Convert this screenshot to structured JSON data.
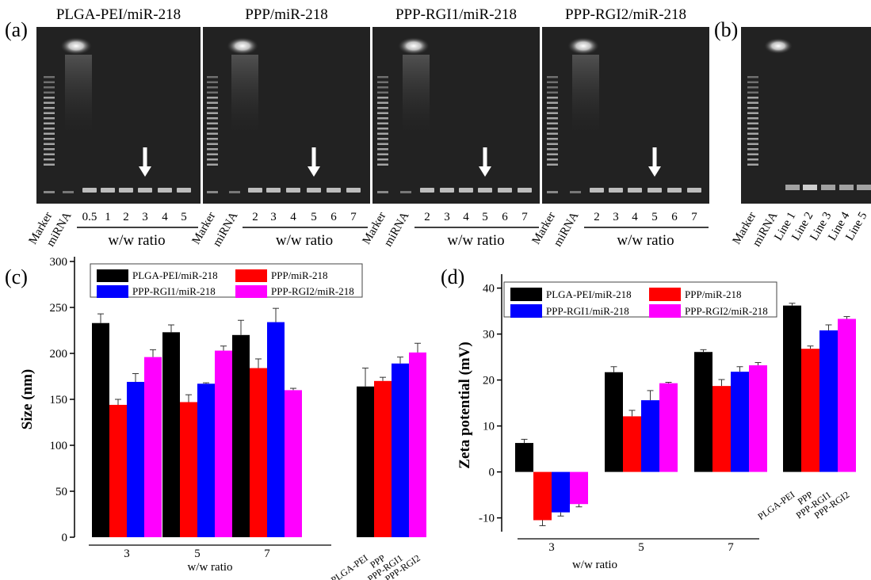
{
  "gels": {
    "panel_a_label": "(a)",
    "panel_b_label": "(b)",
    "xlabel": "w/w ratio",
    "lane_marker": "Marker",
    "lane_mirna": "miRNA",
    "panels": [
      {
        "title": "PLGA-PEI/miR-218",
        "ratios": [
          "0.5",
          "1",
          "2",
          "3",
          "4",
          "5"
        ],
        "arrow_at": "3"
      },
      {
        "title": "PPP/miR-218",
        "ratios": [
          "2",
          "3",
          "4",
          "5",
          "6",
          "7"
        ],
        "arrow_at": "5"
      },
      {
        "title": "PPP-RGI1/miR-218",
        "ratios": [
          "2",
          "3",
          "4",
          "5",
          "6",
          "7"
        ],
        "arrow_at": "5"
      },
      {
        "title": "PPP-RGI2/miR-218",
        "ratios": [
          "2",
          "3",
          "4",
          "5",
          "6",
          "7"
        ],
        "arrow_at": "5"
      }
    ],
    "panel_b_lanes": [
      "Marker",
      "miRNA",
      "Line 1",
      "Line 2",
      "Line 3",
      "Line 4",
      "Line 5"
    ]
  },
  "chart_data": [
    {
      "panel": "(c)",
      "type": "bar",
      "title": "",
      "xlabel": "w/w ratio",
      "ylabel": "Size (nm)",
      "ylim": [
        0,
        300
      ],
      "yticks": [
        0,
        50,
        100,
        150,
        200,
        250,
        300
      ],
      "categories": [
        "3",
        "5",
        "7"
      ],
      "extra_categories": [
        "PLGA-PEI",
        "PPP",
        "PPP-RGI1",
        "PPP-RGI2"
      ],
      "extra_values": [
        164,
        170,
        189,
        201
      ],
      "extra_errors": [
        20,
        4,
        7,
        10
      ],
      "legend_position": "top-left",
      "series": [
        {
          "name": "PLGA-PEI/miR-218",
          "color": "#000000",
          "values": [
            233,
            223,
            220
          ],
          "errors": [
            10,
            8,
            16
          ]
        },
        {
          "name": "PPP/miR-218",
          "color": "#ff0000",
          "values": [
            144,
            147,
            184
          ],
          "errors": [
            6,
            8,
            10
          ]
        },
        {
          "name": "PPP-RGI1/miR-218",
          "color": "#0000ff",
          "values": [
            169,
            167,
            234
          ],
          "errors": [
            9,
            1,
            15
          ]
        },
        {
          "name": "PPP-RGI2/miR-218",
          "color": "#ff00ff",
          "values": [
            196,
            203,
            160
          ],
          "errors": [
            8,
            5,
            2
          ]
        }
      ]
    },
    {
      "panel": "(d)",
      "type": "bar",
      "title": "",
      "xlabel": "w/w ratio",
      "ylabel": "Zeta potential (mV)",
      "ylim": [
        -13,
        42
      ],
      "yticks": [
        -10,
        0,
        10,
        20,
        30,
        40
      ],
      "categories": [
        "3",
        "5",
        "7"
      ],
      "extra_categories": [
        "PLGA-PEI",
        "PPP",
        "PPP-RGI1",
        "PPP-RGI2"
      ],
      "extra_values": [
        36.2,
        26.8,
        30.8,
        33.3
      ],
      "extra_errors": [
        0.5,
        0.6,
        1.2,
        0.5
      ],
      "legend_position": "top-left",
      "series": [
        {
          "name": "PLGA-PEI/miR-218",
          "color": "#000000",
          "values": [
            6.3,
            21.7,
            26.1
          ],
          "errors": [
            0.8,
            1.2,
            0.5
          ]
        },
        {
          "name": "PPP/miR-218",
          "color": "#ff0000",
          "values": [
            -10.5,
            12.1,
            18.7
          ],
          "errors": [
            1.2,
            1.3,
            1.4
          ]
        },
        {
          "name": "PPP-RGI1/miR-218",
          "color": "#0000ff",
          "values": [
            -8.8,
            15.6,
            21.8
          ],
          "errors": [
            0.8,
            2.1,
            1.1
          ]
        },
        {
          "name": "PPP-RGI2/miR-218",
          "color": "#ff00ff",
          "values": [
            -7.0,
            19.3,
            23.2
          ],
          "errors": [
            0.6,
            0.2,
            0.6
          ]
        }
      ]
    }
  ]
}
